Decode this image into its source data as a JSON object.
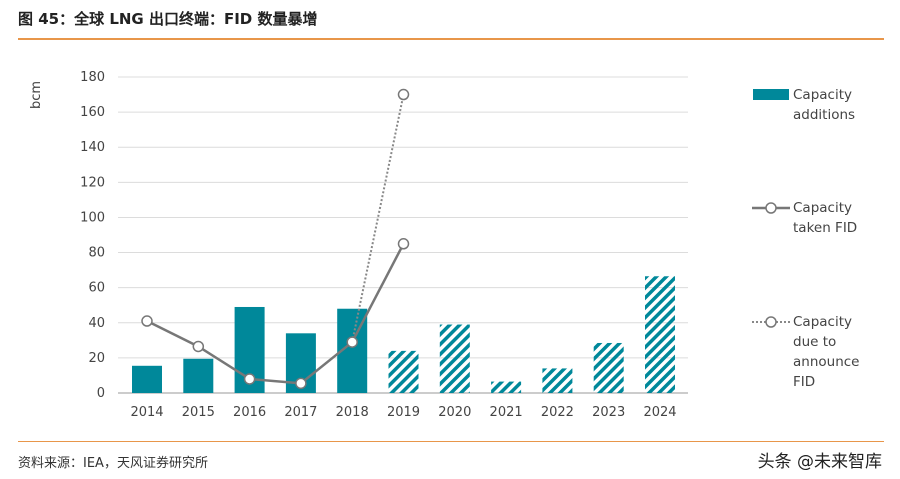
{
  "header": {
    "title": "图 45：全球 LNG 出口终端：FID 数量暴增"
  },
  "footer": {
    "source": "资料来源：IEA，天风证券研究所",
    "watermark": "头条 @未来智库"
  },
  "chart_data": {
    "type": "bar",
    "title": "",
    "ylabel": "bcm",
    "xlabel": "",
    "ylim": [
      0,
      180
    ],
    "yticks": [
      0,
      20,
      40,
      60,
      80,
      100,
      120,
      140,
      160,
      180
    ],
    "grid": true,
    "legend_position": "right",
    "categories": [
      "2014",
      "2015",
      "2016",
      "2017",
      "2018",
      "2019",
      "2020",
      "2021",
      "2022",
      "2023",
      "2024"
    ],
    "bar_color": "#00889a",
    "hatched_from": "2019",
    "series": [
      {
        "name": "Capacity additions",
        "type": "bar",
        "values": [
          15.5,
          19.5,
          49,
          34,
          48,
          24,
          39,
          6.5,
          14,
          28.5,
          66.5
        ]
      },
      {
        "name": "Capacity taken FID",
        "type": "line",
        "values": [
          41,
          26.5,
          8,
          5.5,
          29,
          85,
          null,
          null,
          null,
          null,
          null
        ]
      },
      {
        "name": "Capacity due to announce FID",
        "type": "dotted-line",
        "values": [
          null,
          null,
          null,
          null,
          29,
          170,
          null,
          null,
          null,
          null,
          null
        ]
      }
    ],
    "legend": [
      {
        "lines": [
          "Capacity",
          "additions"
        ]
      },
      {
        "lines": [
          "Capacity",
          "taken FID"
        ]
      },
      {
        "lines": [
          "Capacity",
          "due to",
          "announce",
          "FID"
        ]
      }
    ]
  }
}
